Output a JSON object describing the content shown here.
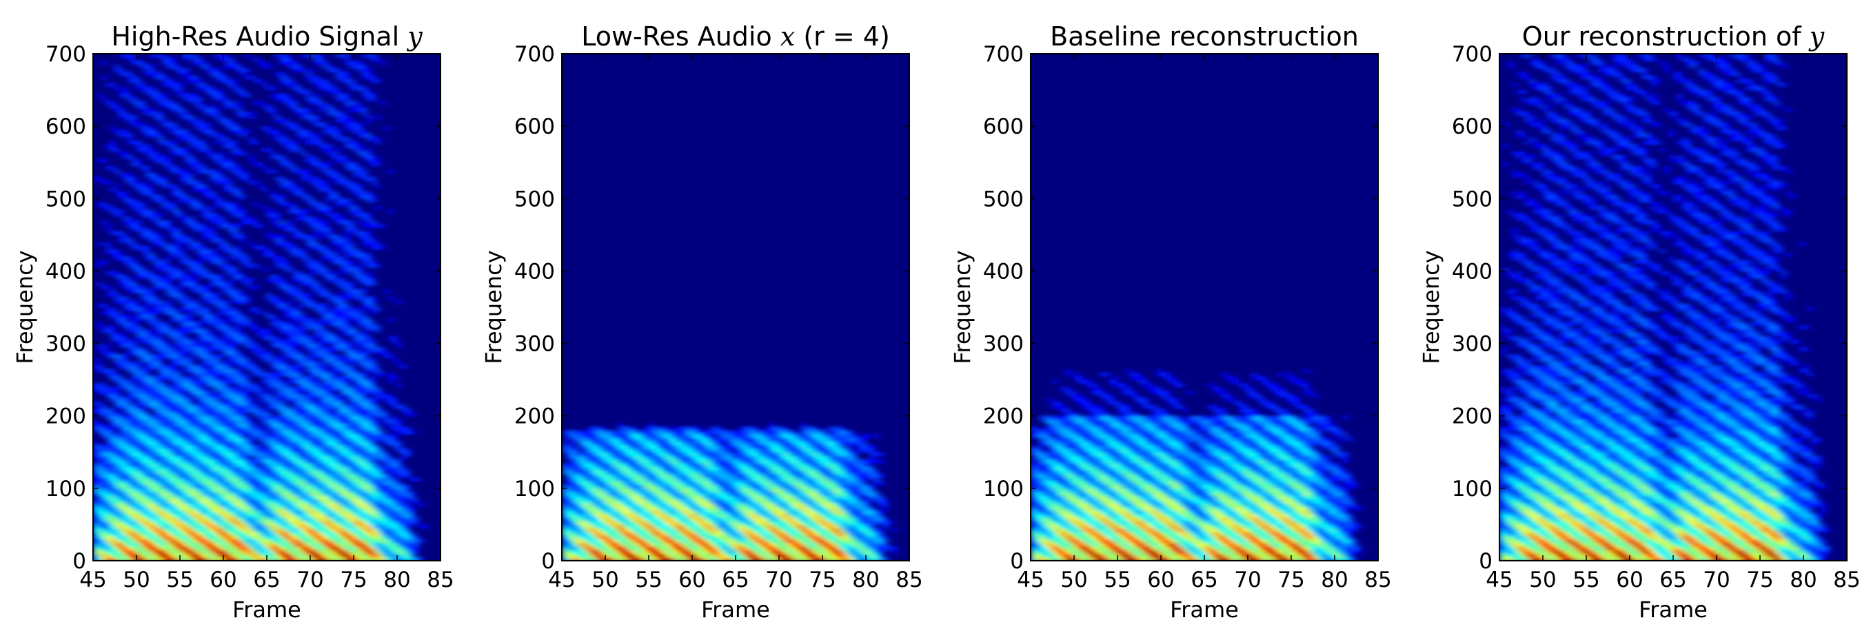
{
  "chart_data": [
    {
      "type": "heatmap",
      "title": "High-Res Audio Signal ",
      "title_math": "y",
      "title_suffix": "",
      "xlabel": "Frame",
      "ylabel": "Frequency",
      "xlim": [
        45,
        85
      ],
      "ylim": [
        0,
        700
      ],
      "xticks": [
        45,
        50,
        55,
        60,
        65,
        70,
        75,
        80,
        85
      ],
      "yticks": [
        0,
        100,
        200,
        300,
        400,
        500,
        600,
        700
      ],
      "colormap": "jet",
      "cutoff_frequency": 700,
      "grid": false
    },
    {
      "type": "heatmap",
      "title": "Low-Res Audio ",
      "title_math": "x",
      "title_suffix": " (r = 4)",
      "xlabel": "Frame",
      "ylabel": "Frequency",
      "xlim": [
        45,
        85
      ],
      "ylim": [
        0,
        700
      ],
      "xticks": [
        45,
        50,
        55,
        60,
        65,
        70,
        75,
        80,
        85
      ],
      "yticks": [
        0,
        100,
        200,
        300,
        400,
        500,
        600,
        700
      ],
      "colormap": "jet",
      "cutoff_frequency": 175,
      "grid": false
    },
    {
      "type": "heatmap",
      "title": "Baseline reconstruction",
      "title_math": "",
      "title_suffix": "",
      "xlabel": "Frame",
      "ylabel": "Frequency",
      "xlim": [
        45,
        85
      ],
      "ylim": [
        0,
        700
      ],
      "xticks": [
        45,
        50,
        55,
        60,
        65,
        70,
        75,
        80,
        85
      ],
      "yticks": [
        0,
        100,
        200,
        300,
        400,
        500,
        600,
        700
      ],
      "colormap": "jet",
      "cutoff_frequency": 260,
      "grid": false
    },
    {
      "type": "heatmap",
      "title": "Our reconstruction of ",
      "title_math": "y",
      "title_suffix": "",
      "xlabel": "Frame",
      "ylabel": "Frequency",
      "xlim": [
        45,
        85
      ],
      "ylim": [
        0,
        700
      ],
      "xticks": [
        45,
        50,
        55,
        60,
        65,
        70,
        75,
        80,
        85
      ],
      "yticks": [
        0,
        100,
        200,
        300,
        400,
        500,
        600,
        700
      ],
      "colormap": "jet",
      "cutoff_frequency": 700,
      "grid": false
    }
  ],
  "colors": {
    "background_dark": "#00007f",
    "frame": "#000000"
  }
}
